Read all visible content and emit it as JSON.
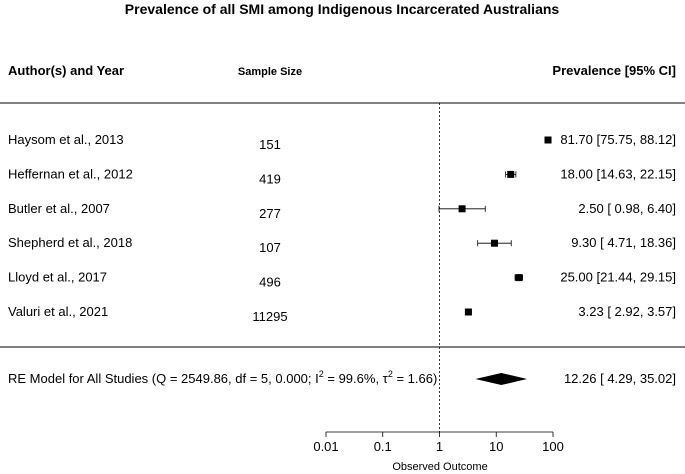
{
  "chart_data": {
    "type": "forest",
    "title": "Prevalence of all SMI among Indigenous Incarcerated Australians",
    "columns": {
      "study": "Author(s) and Year",
      "sample": "Sample Size",
      "estimate": "Prevalence [95% CI]"
    },
    "studies": [
      {
        "label": "Haysom et al.,  2013",
        "n": "151",
        "est": 81.7,
        "lo": 75.75,
        "hi": 88.12,
        "text": "81.70 [75.75, 88.12]"
      },
      {
        "label": "Heffernan et al.,  2012",
        "n": "419",
        "est": 18.0,
        "lo": 14.63,
        "hi": 22.15,
        "text": "18.00 [14.63, 22.15]"
      },
      {
        "label": "Butler et al.,  2007",
        "n": "277",
        "est": 2.5,
        "lo": 0.98,
        "hi": 6.4,
        "text": "2.50 [ 0.98,  6.40]"
      },
      {
        "label": "Shepherd et al.,  2018",
        "n": "107",
        "est": 9.3,
        "lo": 4.71,
        "hi": 18.36,
        "text": "9.30 [ 4.71, 18.36]"
      },
      {
        "label": "Lloyd et al.,  2017",
        "n": "496",
        "est": 25.0,
        "lo": 21.44,
        "hi": 29.15,
        "text": "25.00 [21.44, 29.15]"
      },
      {
        "label": "Valuri et al.,  2021",
        "n": "11295",
        "est": 3.23,
        "lo": 2.92,
        "hi": 3.57,
        "text": "3.23 [ 2.92,  3.57]"
      }
    ],
    "summary": {
      "label_pre": "RE Model for All Studies (Q = 2549.86, df = 5, 0.000; I",
      "label_sup1": "2",
      "label_mid": " = 99.6%, τ",
      "label_sup2": "2",
      "label_post": " = 1.66)",
      "est": 12.26,
      "lo": 4.29,
      "hi": 35.02,
      "text": "12.26 [ 4.29, 35.02]"
    },
    "reference_line": 1,
    "x_scale": "log",
    "xlim": [
      0.01,
      100
    ],
    "x_ticks": [
      0.01,
      0.1,
      1,
      10,
      100
    ],
    "x_tick_labels": [
      "0.01",
      "0.1",
      "1",
      "10",
      "100"
    ],
    "xlabel": "Observed Outcome"
  }
}
